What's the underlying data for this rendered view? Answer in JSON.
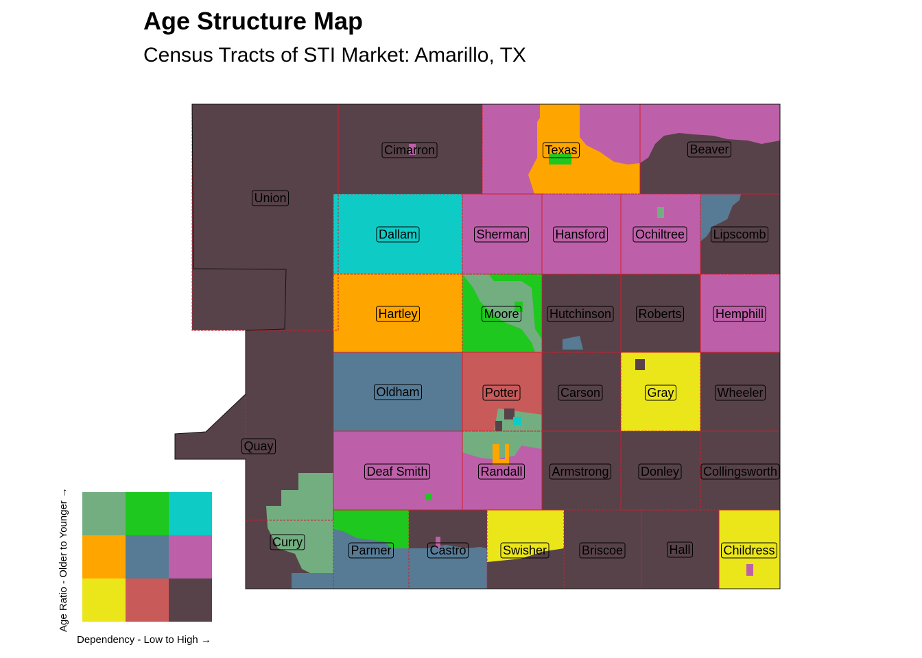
{
  "title": "Age Structure Map",
  "subtitle": "Census Tracts of STI Market: Amarillo, TX",
  "palette": {
    "older_low": "#ebe61a",
    "older_mid": "#c85a5a",
    "older_high": "#574249",
    "mid_low": "#ffa500",
    "mid_mid": "#577b95",
    "mid_high": "#bd60a9",
    "younger_low": "#73ae80",
    "younger_mid": "#1ec81e",
    "younger_high": "#0fcbc6",
    "county_border": "#d81b2b"
  },
  "counties": [
    {
      "name": "Cimarron",
      "class": "older_high"
    },
    {
      "name": "Texas",
      "class": "mid_low"
    },
    {
      "name": "Beaver",
      "class": "older_high"
    },
    {
      "name": "Union",
      "class": "older_high"
    },
    {
      "name": "Dallam",
      "class": "younger_high"
    },
    {
      "name": "Sherman",
      "class": "mid_high"
    },
    {
      "name": "Hansford",
      "class": "mid_high"
    },
    {
      "name": "Ochiltree",
      "class": "mid_high"
    },
    {
      "name": "Lipscomb",
      "class": "older_high"
    },
    {
      "name": "Hartley",
      "class": "mid_low"
    },
    {
      "name": "Moore",
      "class": "younger_mid"
    },
    {
      "name": "Hutchinson",
      "class": "older_high"
    },
    {
      "name": "Roberts",
      "class": "older_high"
    },
    {
      "name": "Hemphill",
      "class": "mid_high"
    },
    {
      "name": "Oldham",
      "class": "mid_mid"
    },
    {
      "name": "Potter",
      "class": "older_mid"
    },
    {
      "name": "Carson",
      "class": "older_high"
    },
    {
      "name": "Gray",
      "class": "older_low"
    },
    {
      "name": "Wheeler",
      "class": "older_high"
    },
    {
      "name": "Quay",
      "class": "older_high"
    },
    {
      "name": "Deaf Smith",
      "class": "mid_high"
    },
    {
      "name": "Randall",
      "class": "mid_high"
    },
    {
      "name": "Armstrong",
      "class": "older_high"
    },
    {
      "name": "Donley",
      "class": "older_high"
    },
    {
      "name": "Collingsworth",
      "class": "older_high"
    },
    {
      "name": "Curry",
      "class": "older_high"
    },
    {
      "name": "Parmer",
      "class": "mid_mid"
    },
    {
      "name": "Castro",
      "class": "mid_mid"
    },
    {
      "name": "Swisher",
      "class": "older_low"
    },
    {
      "name": "Briscoe",
      "class": "older_high"
    },
    {
      "name": "Hall",
      "class": "older_high"
    },
    {
      "name": "Childress",
      "class": "older_low"
    }
  ],
  "legend": {
    "y_label": "Age Ratio - Older to Younger →",
    "x_label": "Dependency - Low to High →",
    "grid": [
      [
        "younger_low",
        "younger_mid",
        "younger_high"
      ],
      [
        "mid_low",
        "mid_mid",
        "mid_high"
      ],
      [
        "older_low",
        "older_mid",
        "older_high"
      ]
    ]
  }
}
